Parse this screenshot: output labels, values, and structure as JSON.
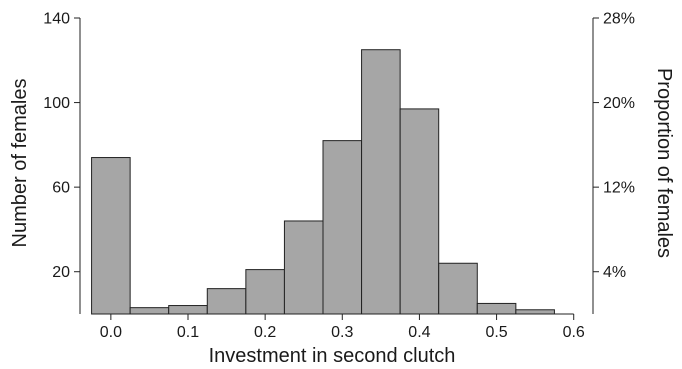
{
  "chart_data": {
    "type": "bar",
    "title": "",
    "xlabel": "Investment in second clutch",
    "ylabel": "Number of females",
    "y2label": "Proportion of females",
    "bin_width": 0.05,
    "bins": [
      {
        "start": -0.025,
        "end": 0.025,
        "value": 74
      },
      {
        "start": 0.025,
        "end": 0.075,
        "value": 3
      },
      {
        "start": 0.075,
        "end": 0.125,
        "value": 4
      },
      {
        "start": 0.125,
        "end": 0.175,
        "value": 12
      },
      {
        "start": 0.175,
        "end": 0.225,
        "value": 21
      },
      {
        "start": 0.225,
        "end": 0.275,
        "value": 44
      },
      {
        "start": 0.275,
        "end": 0.325,
        "value": 82
      },
      {
        "start": 0.325,
        "end": 0.375,
        "value": 125
      },
      {
        "start": 0.375,
        "end": 0.425,
        "value": 97
      },
      {
        "start": 0.425,
        "end": 0.475,
        "value": 24
      },
      {
        "start": 0.475,
        "end": 0.525,
        "value": 5
      },
      {
        "start": 0.525,
        "end": 0.575,
        "value": 2
      }
    ],
    "xlim": [
      -0.04,
      0.625
    ],
    "ylim": [
      0,
      140
    ],
    "x_ticks": [
      0.0,
      0.1,
      0.2,
      0.3,
      0.4,
      0.5,
      0.6
    ],
    "x_tick_labels": [
      "0.0",
      "0.1",
      "0.2",
      "0.3",
      "0.4",
      "0.5",
      "0.6"
    ],
    "y_ticks": [
      20,
      60,
      100,
      140
    ],
    "y_tick_labels": [
      "20",
      "60",
      "100",
      "140"
    ],
    "y2_ticks": [
      20,
      60,
      100,
      140
    ],
    "y2_tick_labels": [
      "4%",
      "12%",
      "20%",
      "28%"
    ],
    "bar_color": "#a6a6a6",
    "edge_color": "#222222",
    "grid": false
  }
}
